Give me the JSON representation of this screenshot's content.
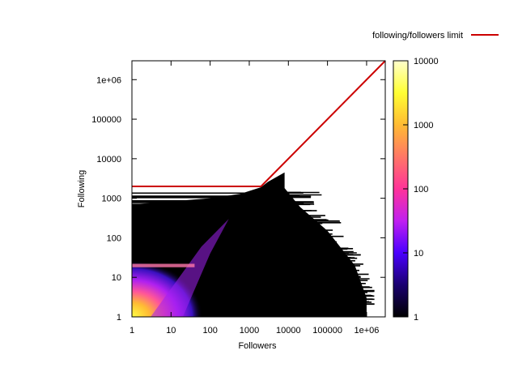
{
  "chart_data": {
    "type": "heatmap",
    "title": "",
    "xlabel": "Followers",
    "ylabel": "Following",
    "x_scale": "log",
    "y_scale": "log",
    "xlim": [
      1,
      3000000
    ],
    "ylim": [
      1,
      3000000
    ],
    "x_ticks": [
      {
        "value": 1,
        "label": "1"
      },
      {
        "value": 10,
        "label": "10"
      },
      {
        "value": 100,
        "label": "100"
      },
      {
        "value": 1000,
        "label": "1000"
      },
      {
        "value": 10000,
        "label": "10000"
      },
      {
        "value": 100000,
        "label": "100000"
      },
      {
        "value": 1000000,
        "label": "1e+06"
      }
    ],
    "y_ticks": [
      {
        "value": 1,
        "label": "1"
      },
      {
        "value": 10,
        "label": "10"
      },
      {
        "value": 100,
        "label": "100"
      },
      {
        "value": 1000,
        "label": "1000"
      },
      {
        "value": 10000,
        "label": "10000"
      },
      {
        "value": 100000,
        "label": "100000"
      },
      {
        "value": 1000000,
        "label": "1e+06"
      }
    ],
    "colorbar": {
      "scale": "log",
      "range": [
        1,
        10000
      ],
      "ticks": [
        {
          "value": 1,
          "label": "1"
        },
        {
          "value": 10,
          "label": "10"
        },
        {
          "value": 100,
          "label": "100"
        },
        {
          "value": 1000,
          "label": "1000"
        },
        {
          "value": 10000,
          "label": "10000"
        }
      ],
      "colors": [
        "#000000",
        "#1a0070",
        "#4a00ff",
        "#c020f0",
        "#ff3399",
        "#ff7766",
        "#ffbb33",
        "#ffff33",
        "#ffffcc"
      ]
    },
    "limit_line": {
      "name": "following/followers limit",
      "color": "#cc0000",
      "points": [
        [
          1,
          2000
        ],
        [
          2000,
          2000
        ],
        [
          3000000,
          3000000
        ]
      ]
    },
    "legend_position": "top-right",
    "grid": false
  }
}
